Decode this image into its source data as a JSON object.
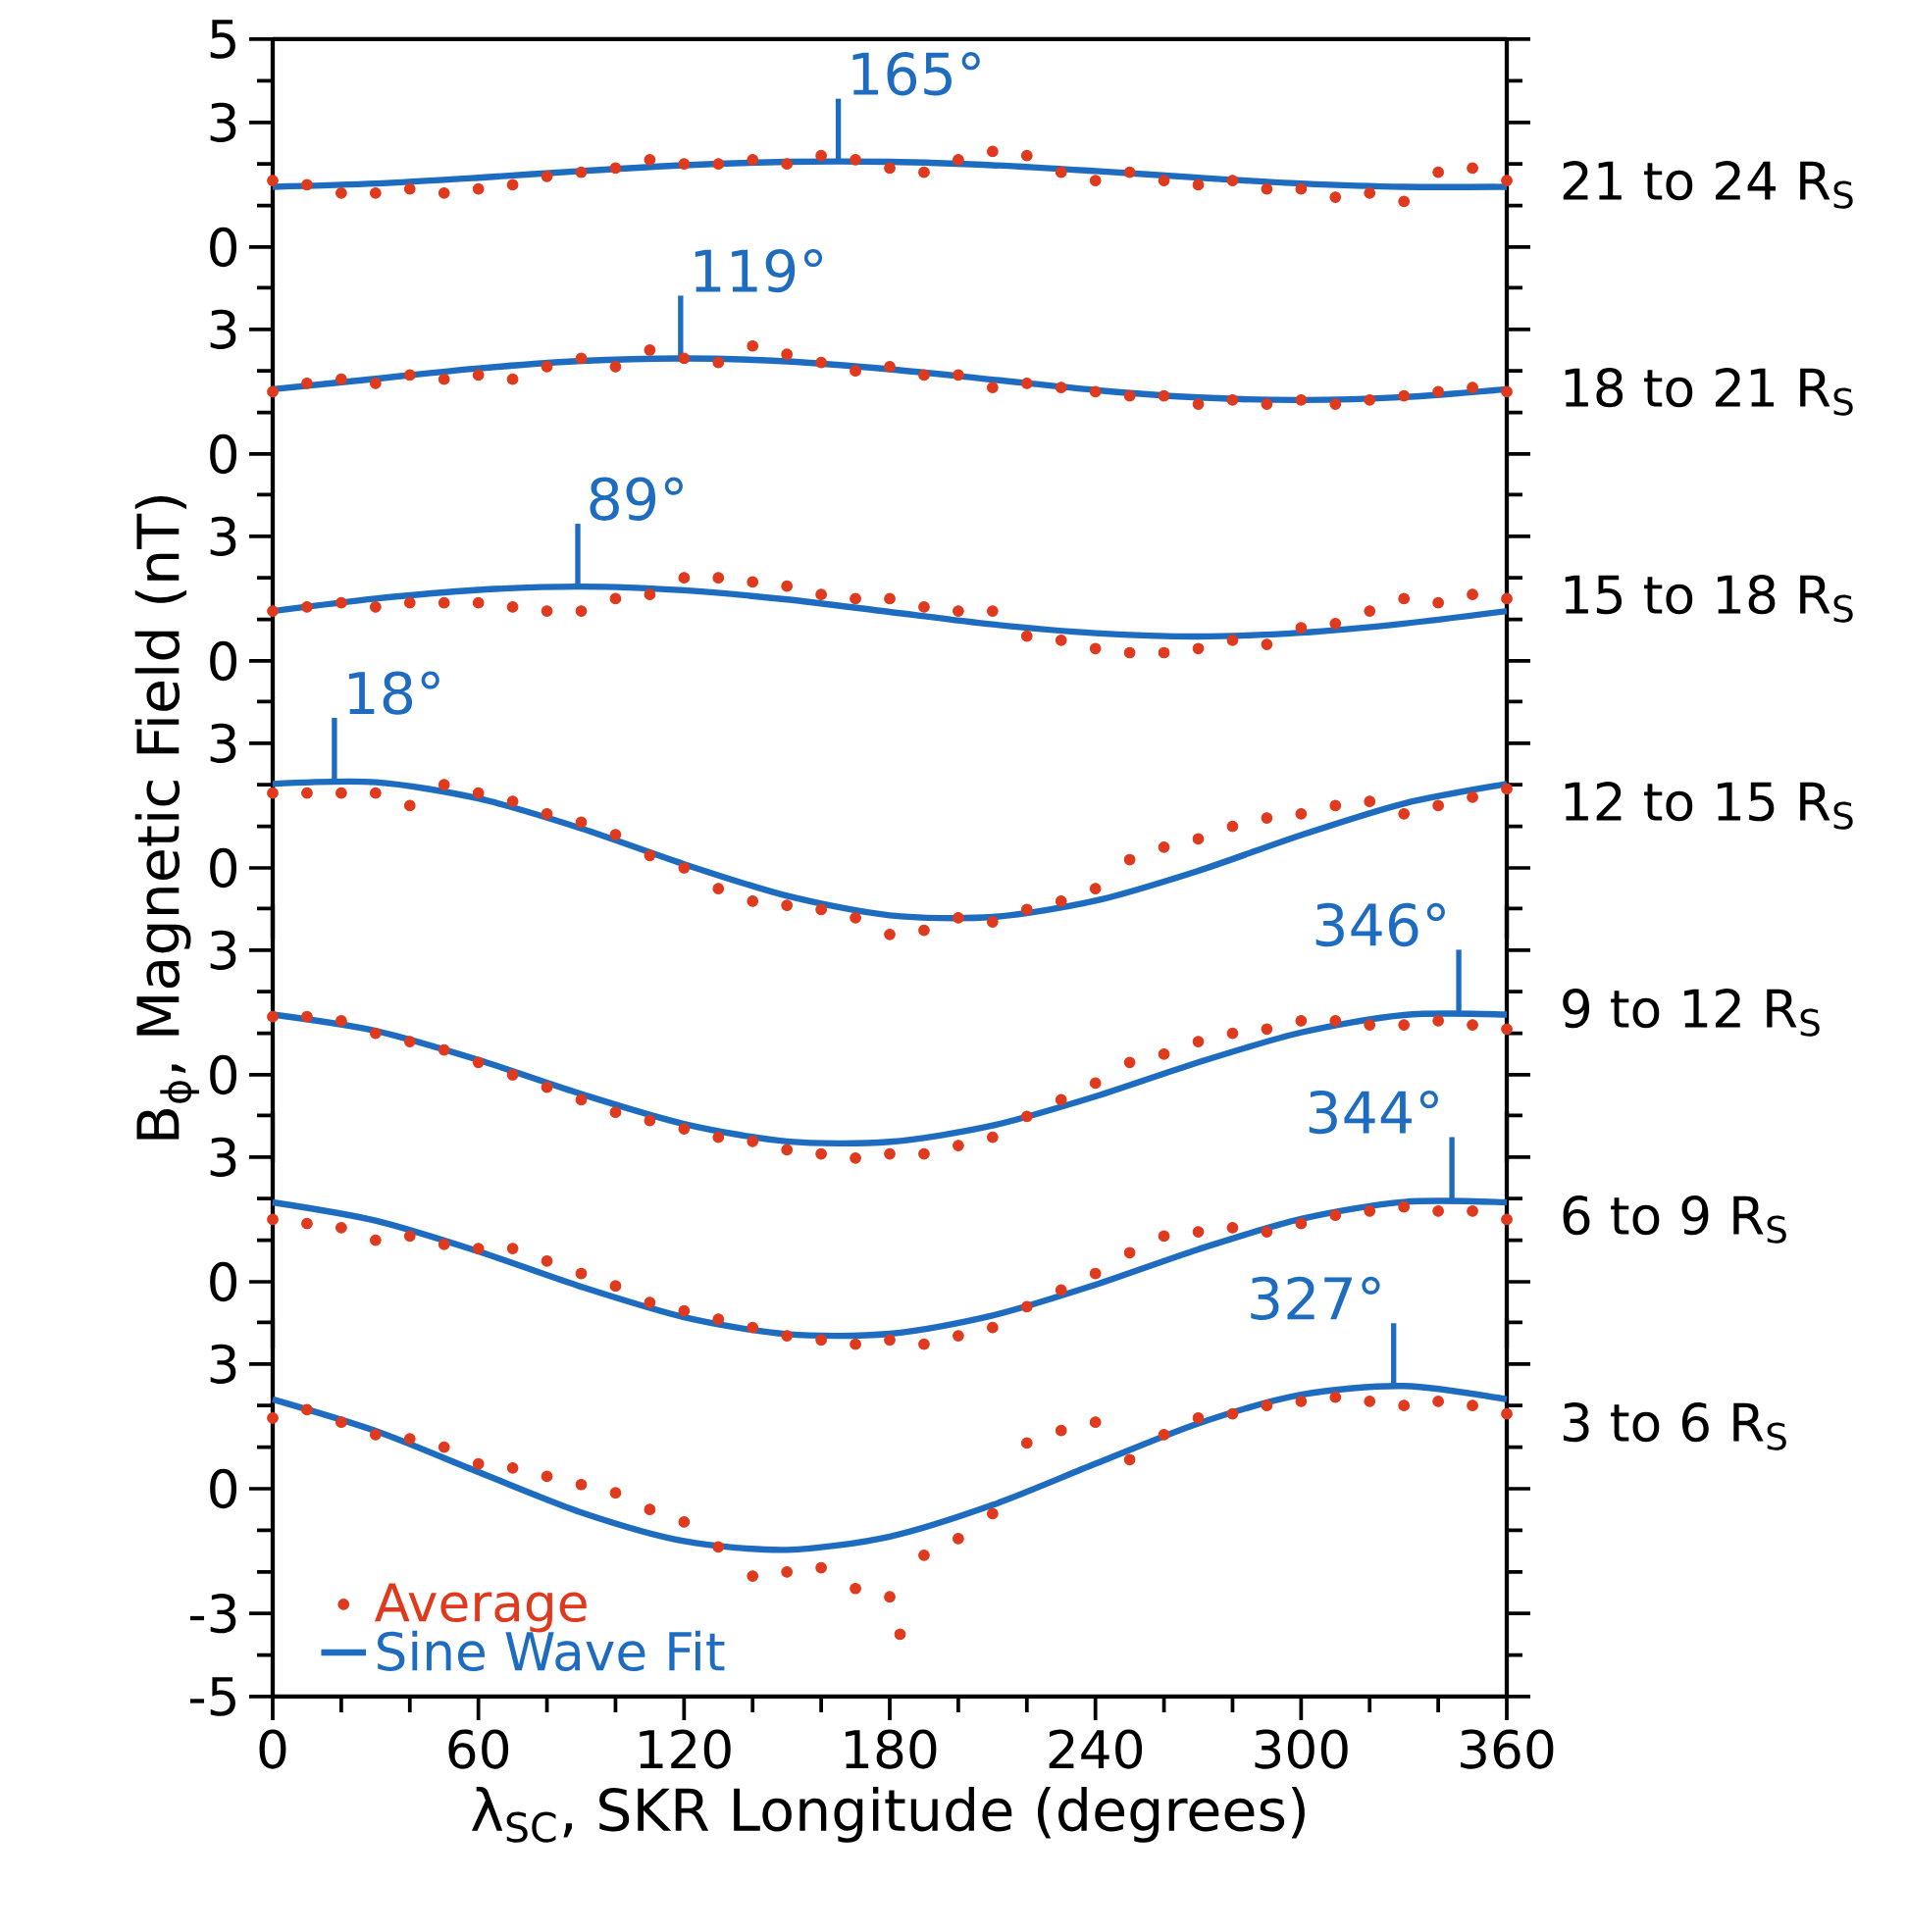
{
  "chart_data": [
    {
      "type": "line",
      "xlim": [
        0,
        360
      ],
      "ylim": [
        -0.9,
        5
      ],
      "yticks": [
        0,
        {
          "value": 1,
          "label": null
        },
        {
          "value": 2,
          "label": null
        },
        3,
        {
          "value": 4,
          "label": null
        },
        5
      ],
      "tick_labels": "y",
      "annotations": [
        {
          "text": "165°",
          "x": 165,
          "y": 2.06
        },
        "21 to 24 R$_{S}$"
      ],
      "series": [
        {
          "type": "scatter",
          "marker": "circle",
          "color": "#e03a1e",
          "x": [
            0,
            10,
            20,
            30,
            40,
            50,
            60,
            70,
            80,
            90,
            100,
            110,
            120,
            130,
            140,
            150,
            160,
            170,
            180,
            190,
            200,
            210,
            220,
            230,
            240,
            250,
            260,
            270,
            280,
            290,
            300,
            310,
            320,
            330,
            340,
            350,
            360
          ],
          "values": [
            1.6,
            1.5,
            1.3,
            1.3,
            1.4,
            1.3,
            1.4,
            1.5,
            1.7,
            1.8,
            1.9,
            2.1,
            2.0,
            2.0,
            2.1,
            2.0,
            2.2,
            2.1,
            1.9,
            1.8,
            2.1,
            2.3,
            2.2,
            1.8,
            1.6,
            1.8,
            1.6,
            1.5,
            1.6,
            1.4,
            1.4,
            1.2,
            1.3,
            1.1,
            1.8,
            1.9,
            1.6
          ]
        },
        {
          "type": "line",
          "color": "#1e6cc0",
          "x": [
            0,
            30,
            60,
            90,
            120,
            150,
            180,
            210,
            240,
            270,
            300,
            330,
            360
          ],
          "values": [
            1.45,
            1.53,
            1.67,
            1.83,
            1.97,
            2.05,
            2.05,
            1.97,
            1.83,
            1.67,
            1.53,
            1.45,
            1.45
          ]
        }
      ]
    },
    {
      "type": "line",
      "xlim": [
        0,
        360
      ],
      "ylim": [
        -0.9,
        4.1
      ],
      "yticks": [
        0,
        {
          "value": 1,
          "label": null
        },
        {
          "value": 2,
          "label": null
        },
        3,
        {
          "value": 4,
          "label": null
        }
      ],
      "tick_labels": "y",
      "annotations": [
        {
          "text": "119°",
          "x": 119,
          "y": 2.3
        },
        "18 to 21 R$_{S}$"
      ],
      "series": [
        {
          "type": "scatter",
          "marker": "circle",
          "color": "#e03a1e",
          "x": [
            0,
            10,
            20,
            30,
            40,
            50,
            60,
            70,
            80,
            90,
            100,
            110,
            120,
            130,
            140,
            150,
            160,
            170,
            180,
            190,
            200,
            210,
            220,
            230,
            240,
            250,
            260,
            270,
            280,
            290,
            300,
            310,
            320,
            330,
            340,
            350,
            360
          ],
          "values": [
            1.5,
            1.7,
            1.8,
            1.7,
            1.9,
            1.8,
            1.9,
            1.8,
            2.1,
            2.3,
            2.1,
            2.5,
            2.3,
            2.2,
            2.6,
            2.4,
            2.2,
            2.0,
            2.1,
            1.9,
            1.9,
            1.6,
            1.7,
            1.6,
            1.5,
            1.4,
            1.4,
            1.2,
            1.3,
            1.2,
            1.3,
            1.2,
            1.3,
            1.4,
            1.5,
            1.6,
            1.5
          ]
        },
        {
          "type": "line",
          "color": "#1e6cc0",
          "x": [
            0,
            30,
            60,
            90,
            120,
            150,
            180,
            210,
            240,
            270,
            300,
            330,
            360
          ],
          "values": [
            1.56,
            1.81,
            2.06,
            2.24,
            2.3,
            2.23,
            2.04,
            1.79,
            1.54,
            1.36,
            1.3,
            1.37,
            1.56
          ]
        }
      ]
    },
    {
      "type": "line",
      "xlim": [
        0,
        360
      ],
      "ylim": [
        -0.9,
        4.1
      ],
      "yticks": [
        0,
        {
          "value": 1,
          "label": null
        },
        {
          "value": 2,
          "label": null
        },
        3,
        {
          "value": 4,
          "label": null
        }
      ],
      "tick_labels": "y",
      "annotations": [
        {
          "text": "89°",
          "x": 89,
          "y": 1.79
        },
        "15 to 18 R$_{S}$"
      ],
      "series": [
        {
          "type": "scatter",
          "marker": "circle",
          "color": "#e03a1e",
          "x": [
            0,
            10,
            20,
            30,
            40,
            50,
            60,
            70,
            80,
            90,
            100,
            110,
            120,
            130,
            140,
            150,
            160,
            170,
            180,
            190,
            200,
            210,
            220,
            230,
            240,
            250,
            260,
            270,
            280,
            290,
            300,
            310,
            320,
            330,
            340,
            350,
            360
          ],
          "values": [
            1.2,
            1.3,
            1.4,
            1.3,
            1.4,
            1.4,
            1.4,
            1.3,
            1.2,
            1.2,
            1.5,
            1.6,
            2.0,
            2.0,
            1.9,
            1.8,
            1.6,
            1.5,
            1.5,
            1.3,
            1.2,
            1.2,
            0.6,
            0.5,
            0.3,
            0.2,
            0.2,
            0.3,
            0.5,
            0.4,
            0.8,
            0.9,
            1.2,
            1.5,
            1.4,
            1.6,
            1.5
          ]
        },
        {
          "type": "line",
          "color": "#1e6cc0",
          "x": [
            0,
            30,
            60,
            90,
            120,
            150,
            180,
            210,
            240,
            270,
            300,
            330,
            360
          ],
          "values": [
            1.2,
            1.5,
            1.71,
            1.79,
            1.7,
            1.48,
            1.18,
            0.88,
            0.67,
            0.59,
            0.68,
            0.9,
            1.2
          ]
        }
      ]
    },
    {
      "type": "line",
      "xlim": [
        0,
        360
      ],
      "ylim": [
        -1.7,
        4.1
      ],
      "yticks": [
        0,
        {
          "value": 1,
          "label": null
        },
        {
          "value": 2,
          "label": null
        },
        3,
        {
          "value": 4,
          "label": null
        }
      ],
      "tick_labels": "y",
      "ylabel": "B$_{ϕ}$, Magnetic Field (nT)",
      "annotations": [
        {
          "text": "18°",
          "x": 18,
          "y": 2.1
        },
        "12 to 15 R$_{S}$"
      ],
      "series": [
        {
          "type": "scatter",
          "marker": "circle",
          "color": "#e03a1e",
          "x": [
            0,
            10,
            20,
            30,
            40,
            50,
            60,
            70,
            80,
            90,
            100,
            110,
            120,
            130,
            140,
            150,
            160,
            170,
            180,
            190,
            200,
            210,
            220,
            230,
            240,
            250,
            260,
            270,
            280,
            290,
            300,
            310,
            320,
            330,
            340,
            350,
            360
          ],
          "values": [
            1.8,
            1.8,
            1.8,
            1.8,
            1.5,
            2.0,
            1.8,
            1.6,
            1.3,
            1.1,
            0.8,
            0.3,
            0.0,
            -0.5,
            -0.8,
            -0.9,
            -1.0,
            -1.2,
            -1.6,
            -1.5,
            -1.2,
            -1.3,
            -1.0,
            -0.8,
            -0.5,
            0.2,
            0.5,
            0.7,
            1.0,
            1.2,
            1.3,
            1.5,
            1.6,
            1.3,
            1.5,
            1.7,
            1.9
          ]
        },
        {
          "type": "line",
          "color": "#1e6cc0",
          "x": [
            0,
            30,
            60,
            90,
            120,
            150,
            180,
            210,
            240,
            270,
            300,
            330,
            360
          ],
          "values": [
            2.02,
            2.06,
            1.67,
            0.95,
            0.09,
            -0.67,
            -1.14,
            -1.18,
            -0.79,
            -0.07,
            0.79,
            1.55,
            2.02
          ]
        }
      ]
    },
    {
      "type": "line",
      "xlim": [
        0,
        360
      ],
      "ylim": [
        -2.1,
        4.1
      ],
      "yticks": [
        0,
        {
          "value": 1,
          "label": null
        },
        {
          "value": 2,
          "label": null
        },
        3,
        {
          "value": 4,
          "label": null
        }
      ],
      "tick_labels": "y",
      "annotations": [
        {
          "text": "346°",
          "x": 346,
          "y": 1.5
        },
        "9 to 12 R$_{S}$"
      ],
      "series": [
        {
          "type": "scatter",
          "marker": "circle",
          "color": "#e03a1e",
          "x": [
            0,
            10,
            20,
            30,
            40,
            50,
            60,
            70,
            80,
            90,
            100,
            110,
            120,
            130,
            140,
            150,
            160,
            170,
            180,
            190,
            200,
            210,
            220,
            230,
            240,
            250,
            260,
            270,
            280,
            290,
            300,
            310,
            320,
            330,
            340,
            350,
            360
          ],
          "values": [
            1.4,
            1.4,
            1.3,
            1.0,
            0.8,
            0.6,
            0.3,
            0.0,
            -0.3,
            -0.6,
            -0.9,
            -1.1,
            -1.3,
            -1.5,
            -1.6,
            -1.8,
            -1.9,
            -2.0,
            -1.9,
            -1.9,
            -1.7,
            -1.5,
            -1.0,
            -0.6,
            -0.2,
            0.3,
            0.5,
            0.8,
            1.0,
            1.1,
            1.3,
            1.3,
            1.2,
            1.2,
            1.3,
            1.2,
            1.1
          ]
        },
        {
          "type": "line",
          "color": "#1e6cc0",
          "x": [
            0,
            30,
            60,
            90,
            120,
            150,
            180,
            210,
            240,
            270,
            300,
            330,
            360
          ],
          "values": [
            1.45,
            1.06,
            0.36,
            -0.46,
            -1.18,
            -1.6,
            -1.61,
            -1.22,
            -0.52,
            0.3,
            1.02,
            1.44,
            1.45
          ]
        }
      ]
    },
    {
      "type": "line",
      "xlim": [
        0,
        360
      ],
      "ylim": [
        -1.6,
        4.1
      ],
      "yticks": [
        0,
        {
          "value": 1,
          "label": null
        },
        {
          "value": 2,
          "label": null
        },
        3,
        {
          "value": 4,
          "label": null
        }
      ],
      "tick_labels": "y",
      "annotations": [
        {
          "text": "344°",
          "x": 344,
          "y": 1.97
        },
        "6 to 9 R$_{S}$"
      ],
      "series": [
        {
          "type": "scatter",
          "marker": "circle",
          "color": "#e03a1e",
          "x": [
            0,
            10,
            20,
            30,
            40,
            50,
            60,
            70,
            80,
            90,
            100,
            110,
            120,
            130,
            140,
            150,
            160,
            170,
            180,
            190,
            200,
            210,
            220,
            230,
            240,
            250,
            260,
            270,
            280,
            290,
            300,
            310,
            320,
            330,
            340,
            350,
            360
          ],
          "values": [
            1.5,
            1.4,
            1.3,
            1.0,
            1.1,
            0.9,
            0.8,
            0.8,
            0.5,
            0.2,
            -0.1,
            -0.5,
            -0.7,
            -0.9,
            -1.1,
            -1.3,
            -1.4,
            -1.5,
            -1.4,
            -1.5,
            -1.3,
            -1.1,
            -0.6,
            -0.2,
            0.2,
            0.7,
            1.1,
            1.2,
            1.3,
            1.2,
            1.4,
            1.6,
            1.7,
            1.8,
            1.7,
            1.7,
            1.5
          ]
        },
        {
          "type": "line",
          "color": "#1e6cc0",
          "x": [
            0,
            30,
            60,
            90,
            120,
            150,
            180,
            210,
            240,
            270,
            300,
            330,
            360
          ],
          "values": [
            1.91,
            1.47,
            0.73,
            -0.12,
            -0.85,
            -1.26,
            -1.25,
            -0.81,
            -0.07,
            0.78,
            1.51,
            1.92,
            1.91
          ]
        }
      ]
    },
    {
      "type": "line",
      "xlim": [
        0,
        360
      ],
      "ylim": [
        -5,
        4.1
      ],
      "yticks": [
        -5,
        {
          "value": -4,
          "label": null
        },
        -3,
        {
          "value": -2,
          "label": null
        },
        {
          "value": -1,
          "label": null
        },
        0,
        {
          "value": 1,
          "label": null
        },
        {
          "value": 2,
          "label": null
        },
        3,
        {
          "value": 4,
          "label": null
        }
      ],
      "xticks": [
        0,
        {
          "value": 20,
          "label": null
        },
        {
          "value": 40,
          "label": null
        },
        60,
        {
          "value": 80,
          "label": null
        },
        {
          "value": 100,
          "label": null
        },
        120,
        {
          "value": 140,
          "label": null
        },
        {
          "value": 160,
          "label": null
        },
        180,
        {
          "value": 200,
          "label": null
        },
        {
          "value": 220,
          "label": null
        },
        240,
        {
          "value": 260,
          "label": null
        },
        {
          "value": 280,
          "label": null
        },
        300,
        {
          "value": 320,
          "label": null
        },
        {
          "value": 340,
          "label": null
        },
        360
      ],
      "xlabel": "λ$_{SC}$, SKR Longitude (degrees)",
      "legend": "bottom left",
      "annotations": [
        {
          "text": "327°",
          "x": 327,
          "y": 2.47
        },
        "3 to 6 R$_{S}$"
      ],
      "series": [
        {
          "type": "scatter",
          "name": "Average",
          "marker": "circle",
          "color": "#e03a1e",
          "x": [
            0,
            10,
            20,
            30,
            40,
            50,
            60,
            70,
            80,
            90,
            100,
            110,
            120,
            130,
            140,
            150,
            160,
            170,
            180,
            183,
            190,
            200,
            210,
            220,
            230,
            240,
            250,
            260,
            270,
            280,
            290,
            300,
            310,
            320,
            330,
            340,
            350,
            360
          ],
          "values": [
            1.7,
            1.9,
            1.6,
            1.3,
            1.2,
            1.0,
            0.6,
            0.5,
            0.3,
            0.1,
            -0.1,
            -0.5,
            -0.8,
            -1.4,
            -2.1,
            -2.0,
            -1.9,
            -2.4,
            -2.6,
            -3.5,
            -1.6,
            -1.2,
            -0.6,
            1.1,
            1.4,
            1.6,
            0.7,
            1.3,
            1.7,
            1.8,
            2.0,
            2.1,
            2.2,
            2.1,
            2.0,
            2.1,
            2.0,
            1.8
          ]
        },
        {
          "type": "line",
          "name": "Sine Wave Fit",
          "color": "#1e6cc0",
          "x": [
            0,
            30,
            60,
            90,
            120,
            150,
            180,
            210,
            240,
            270,
            300,
            330,
            360
          ],
          "values": [
            2.15,
            1.39,
            0.4,
            -0.57,
            -1.26,
            -1.47,
            -1.15,
            -0.39,
            0.6,
            1.57,
            2.26,
            2.47,
            2.15
          ]
        }
      ]
    }
  ]
}
